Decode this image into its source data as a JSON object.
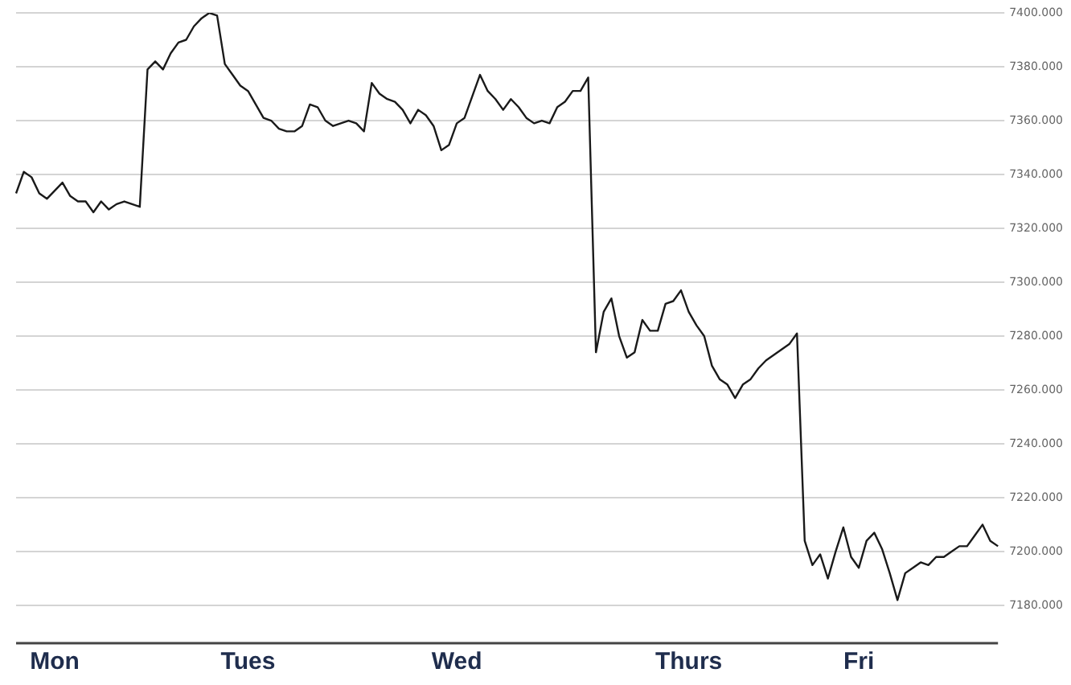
{
  "chart_data": {
    "type": "line",
    "categories": [
      null,
      null,
      null,
      null,
      null,
      "Mon",
      null,
      null,
      null,
      null,
      null,
      null,
      null,
      null,
      null,
      null,
      null,
      null,
      null,
      null,
      null,
      null,
      null,
      null,
      null,
      null,
      null,
      null,
      null,
      null,
      "Tues",
      null,
      null,
      null,
      null,
      null,
      null,
      null,
      null,
      null,
      null,
      null,
      null,
      null,
      null,
      null,
      null,
      null,
      null,
      null,
      null,
      null,
      null,
      null,
      null,
      null,
      null,
      "Wed",
      null,
      null,
      null,
      null,
      null,
      null,
      null,
      null,
      null,
      null,
      null,
      null,
      null,
      null,
      null,
      null,
      null,
      null,
      null,
      null,
      null,
      null,
      null,
      null,
      null,
      null,
      null,
      null,
      null,
      "Thurs",
      null,
      null,
      null,
      null,
      null,
      null,
      null,
      null,
      null,
      null,
      null,
      null,
      null,
      null,
      null,
      null,
      null,
      null,
      null,
      null,
      null,
      "Fri",
      null,
      null,
      null,
      null,
      null,
      null,
      null,
      null,
      null,
      null,
      null,
      null,
      null,
      null,
      null,
      null,
      null,
      null
    ],
    "series": [
      {
        "color": "#1a1a1a",
        "values": [
          7333,
          7341,
          7339,
          7333,
          7331,
          7334,
          7337,
          7332,
          7330,
          7330,
          7326,
          7330,
          7327,
          7329,
          7330,
          7329,
          7328,
          7379,
          7382,
          7379,
          7385,
          7389,
          7390,
          7395,
          7398,
          7400,
          7399,
          7381,
          7377,
          7373,
          7371,
          7366,
          7361,
          7360,
          7357,
          7356,
          7356,
          7358,
          7366,
          7365,
          7360,
          7358,
          7359,
          7360,
          7359,
          7356,
          7374,
          7370,
          7368,
          7367,
          7364,
          7359,
          7364,
          7362,
          7358,
          7349,
          7351,
          7359,
          7361,
          7369,
          7377,
          7371,
          7368,
          7364,
          7368,
          7365,
          7361,
          7359,
          7360,
          7359,
          7365,
          7367,
          7371,
          7371,
          7376,
          7274,
          7289,
          7294,
          7280,
          7272,
          7274,
          7286,
          7282,
          7282,
          7292,
          7293,
          7297,
          7289,
          7284,
          7280,
          7269,
          7264,
          7262,
          7257,
          7262,
          7264,
          7268,
          7271,
          7273,
          7275,
          7277,
          7281,
          7204,
          7195,
          7199,
          7190,
          7200,
          7209,
          7198,
          7194,
          7204,
          7207,
          7201,
          7192,
          7182,
          7192,
          7194,
          7196,
          7195,
          7198,
          7198,
          7200,
          7202,
          7202,
          7206,
          7210,
          7204,
          7202
        ]
      }
    ],
    "ylim": [
      7166,
      7400
    ],
    "yticks": [
      {
        "value": 7400,
        "label": "7400.000"
      },
      {
        "value": 7380,
        "label": "7380.000"
      },
      {
        "value": 7360,
        "label": "7360.000"
      },
      {
        "value": 7340,
        "label": "7340.000"
      },
      {
        "value": 7320,
        "label": "7320.000"
      },
      {
        "value": 7300,
        "label": "7300.000"
      },
      {
        "value": 7280,
        "label": "7280.000"
      },
      {
        "value": 7260,
        "label": "7260.000"
      },
      {
        "value": 7240,
        "label": "7240.000"
      },
      {
        "value": 7220,
        "label": "7220.000"
      },
      {
        "value": 7200,
        "label": "7200.000"
      },
      {
        "value": 7180,
        "label": "7180.000"
      }
    ],
    "grid": "y",
    "legend": false,
    "marker": "none",
    "line_style": "solid"
  }
}
